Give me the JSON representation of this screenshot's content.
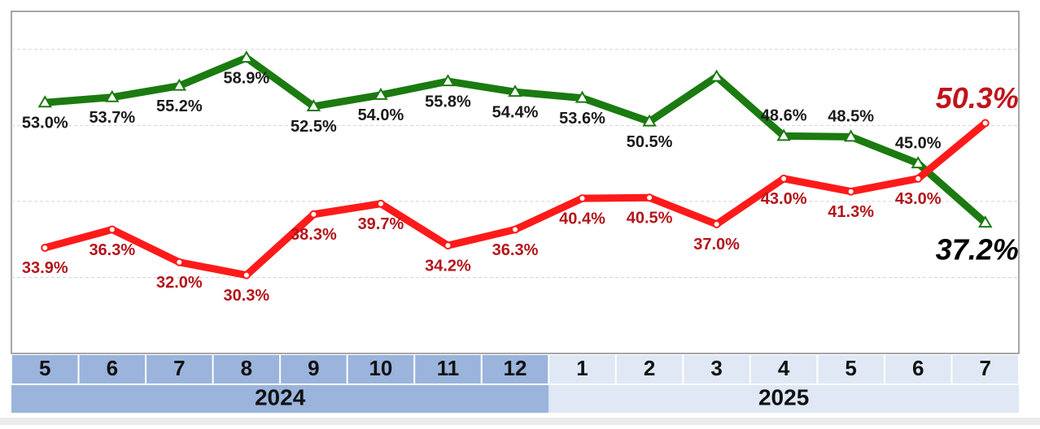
{
  "chart_data": {
    "type": "line",
    "categories": [
      "5",
      "6",
      "7",
      "8",
      "9",
      "10",
      "11",
      "12",
      "1",
      "2",
      "3",
      "4",
      "5",
      "6",
      "7"
    ],
    "year_labels": [
      "2024",
      "2025"
    ],
    "series": [
      {
        "color": "#1b7a10",
        "values": [
          53.0,
          53.7,
          55.2,
          58.9,
          52.5,
          54.0,
          55.8,
          54.4,
          53.6,
          50.5,
          56.4,
          48.6,
          48.5,
          45.0,
          37.2
        ],
        "value_labels": [
          "53.0%",
          "53.7%",
          "55.2%",
          "58.9%",
          "52.5%",
          "54.0%",
          "55.8%",
          "54.4%",
          "53.6%",
          "50.5%",
          null,
          "48.6%",
          "48.5%",
          "45.0%",
          "37.2%"
        ]
      },
      {
        "color": "#ff1a1a",
        "values": [
          33.9,
          36.3,
          32.0,
          30.3,
          38.3,
          39.7,
          34.2,
          36.3,
          40.4,
          40.5,
          37.0,
          43.0,
          41.3,
          43.0,
          50.3
        ],
        "value_labels": [
          "33.9%",
          "36.3%",
          "32.0%",
          "30.3%",
          "38.3%",
          "39.7%",
          "34.2%",
          "36.3%",
          "40.4%",
          "40.5%",
          "37.0%",
          "43.0%",
          "41.3%",
          "43.0%",
          "50.3%"
        ]
      }
    ],
    "ylim": [
      20,
      65
    ],
    "yticks": [
      30,
      40,
      50,
      60
    ],
    "grid": true
  }
}
